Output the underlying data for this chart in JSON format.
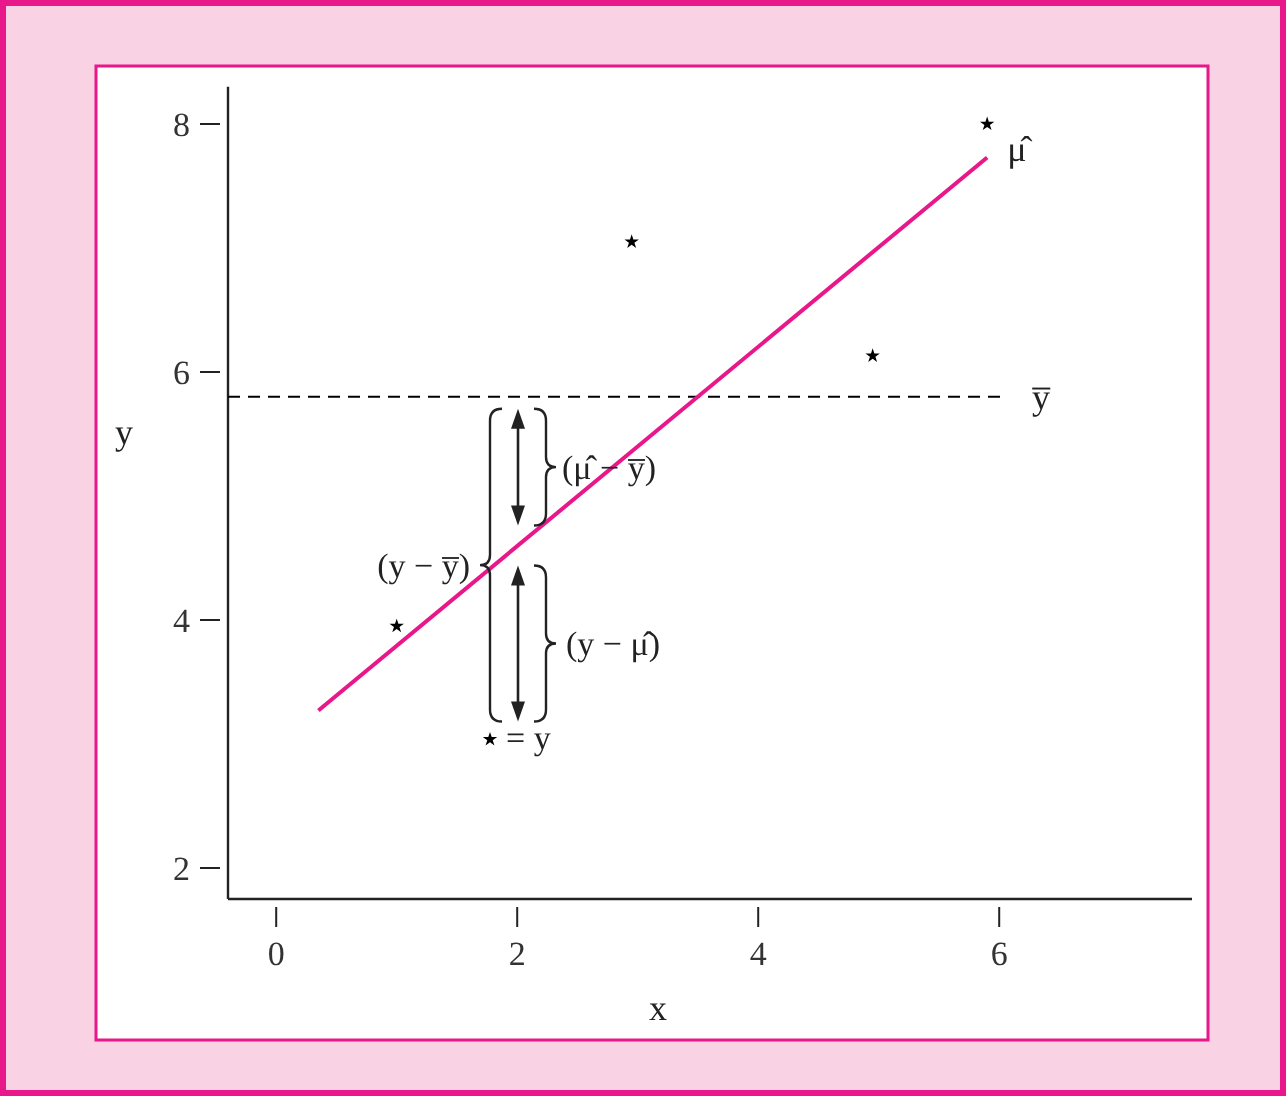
{
  "chart_data": {
    "type": "scatter",
    "xlabel": "x",
    "ylabel": "y",
    "xlim": [
      -0.4,
      7.6
    ],
    "ylim": [
      1.75,
      8.3
    ],
    "xticks": [
      0,
      2,
      4,
      6
    ],
    "yticks": [
      2,
      4,
      6,
      8
    ],
    "grid": false,
    "legend": "bottom left",
    "marker": "star",
    "series": [
      {
        "name": "= y",
        "color": "#000000",
        "x": [
          1.0,
          2.95,
          4.95,
          5.9
        ],
        "values": [
          3.95,
          7.05,
          6.13,
          8.0
        ]
      },
      {
        "name": "μ̂",
        "type": "line",
        "color": "#e8178a",
        "marker": "none",
        "line_style": "solid",
        "x": [
          0.35,
          5.9
        ],
        "values": [
          3.27,
          7.73
        ]
      }
    ],
    "ref_lines": [
      {
        "axis": "y",
        "value": 5.8,
        "label": "y̅",
        "line_style": "dashed",
        "color": "#000000"
      }
    ],
    "annotations": [
      "(μ̂ − y̅)",
      "(y − y̅)",
      "(y − μ̂)"
    ]
  }
}
